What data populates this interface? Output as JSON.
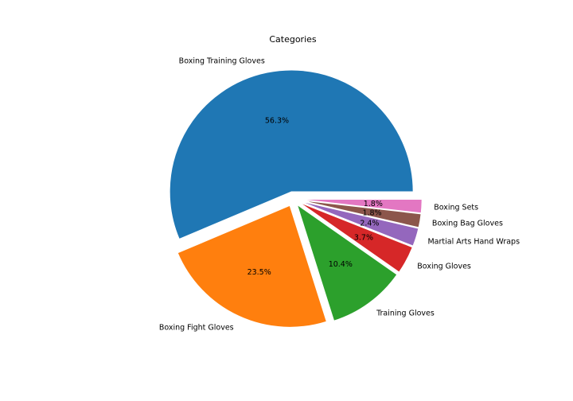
{
  "chart_data": {
    "type": "pie",
    "title": "Categories",
    "slices": [
      {
        "label": "Boxing Training Gloves",
        "value": 56.3,
        "pct_label": "56.3%",
        "color": "#1f77b4"
      },
      {
        "label": "Boxing Fight Gloves",
        "value": 23.5,
        "pct_label": "23.5%",
        "color": "#ff7f0e"
      },
      {
        "label": "Training Gloves",
        "value": 10.4,
        "pct_label": "10.4%",
        "color": "#2ca02c"
      },
      {
        "label": "Boxing Gloves",
        "value": 3.7,
        "pct_label": "3.7%",
        "color": "#d62728"
      },
      {
        "label": "Martial Arts Hand Wraps",
        "value": 2.4,
        "pct_label": "2.4%",
        "color": "#9467bd"
      },
      {
        "label": "Boxing Bag Gloves",
        "value": 1.8,
        "pct_label": "1.8%",
        "color": "#8c564b"
      },
      {
        "label": "Boxing Sets",
        "value": 1.8,
        "pct_label": "1.8%",
        "color": "#e377c2"
      }
    ],
    "start_angle_deg": 0,
    "direction": "counterclockwise",
    "exploded": true,
    "legend": "none"
  }
}
